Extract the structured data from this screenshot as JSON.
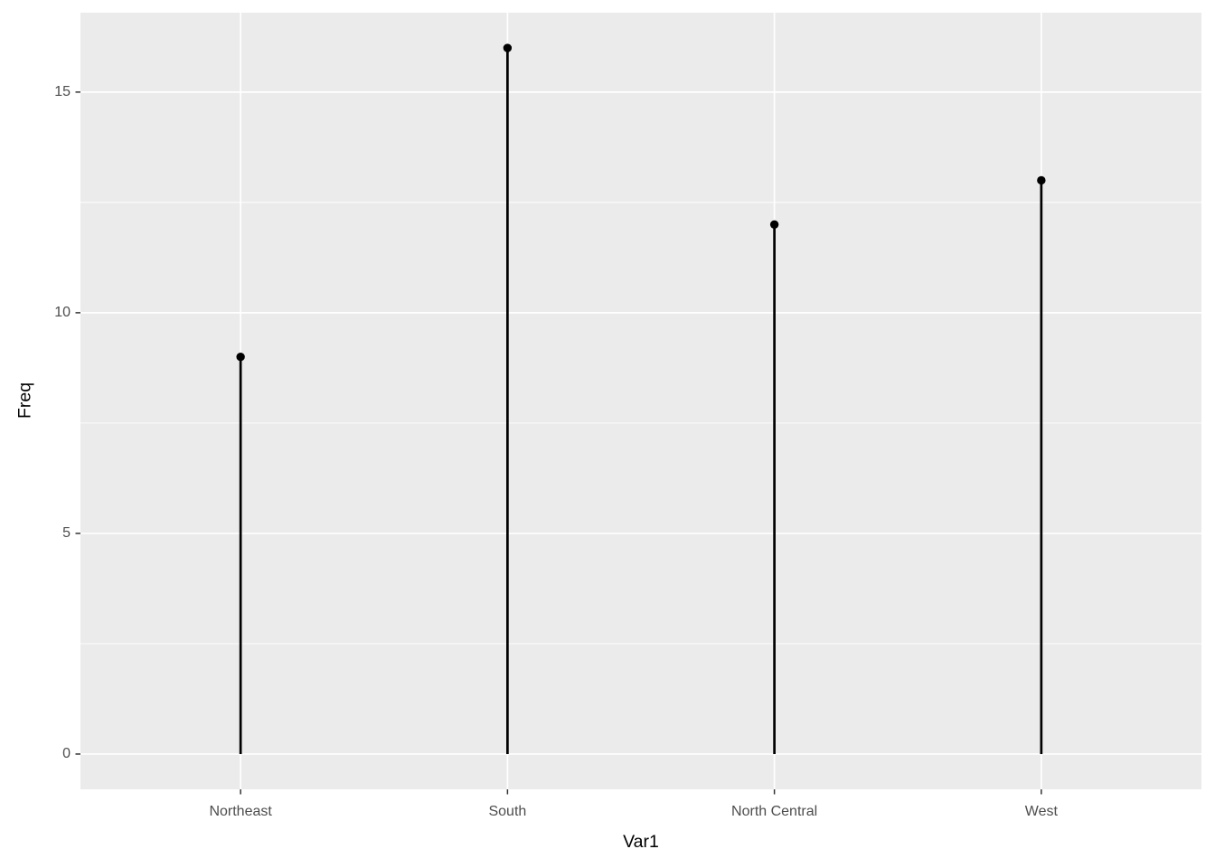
{
  "chart_data": {
    "type": "lollipop",
    "title": "",
    "xlabel": "Var1",
    "ylabel": "Freq",
    "categories": [
      "Northeast",
      "South",
      "North Central",
      "West"
    ],
    "values": [
      9,
      16,
      12,
      13
    ],
    "yticks": [
      0,
      5,
      10,
      15
    ],
    "ylim": [
      -0.8,
      16.8
    ],
    "grid": "horizontal major+minor, vertical major at categories",
    "legend_position": "none",
    "colors": {
      "figure_bg": "#ffffff",
      "panel_bg": "#ebebeb",
      "gridline": "#ffffff",
      "stem": "#000000",
      "point": "#000000",
      "tick_mark": "#333333",
      "tick_text": "#4d4d4d",
      "axis_title_text": "#000000"
    }
  }
}
